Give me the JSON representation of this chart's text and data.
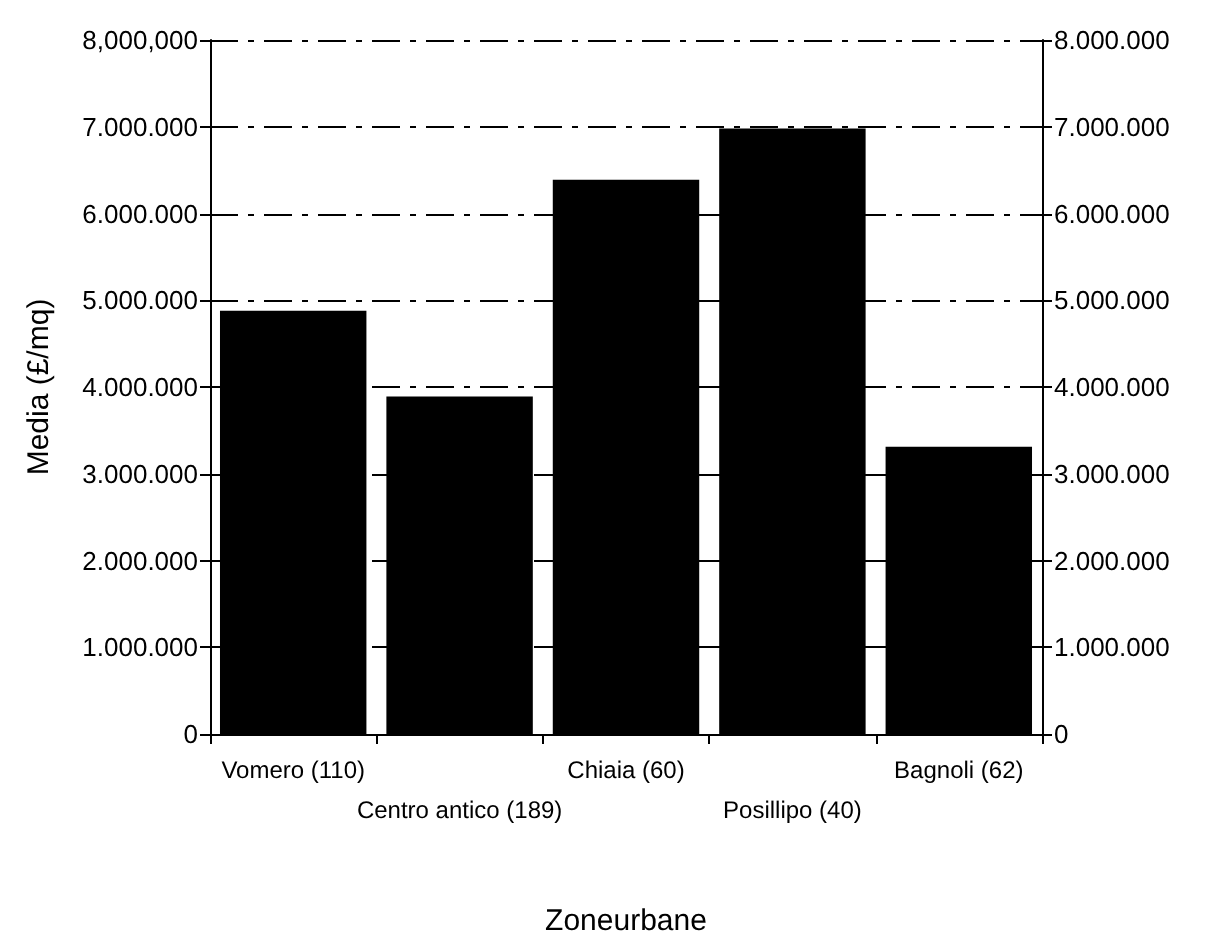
{
  "chart_data": {
    "type": "bar",
    "xlabel": "Zoneurbane",
    "ylabel": "Media (£/mq)",
    "categories": [
      "Vomero (110)",
      "Centro antico (189)",
      "Chiaia (60)",
      "Posillipo (40)",
      "Bagnoli (62)"
    ],
    "values": [
      4880000,
      3890000,
      6390000,
      6980000,
      3310000
    ],
    "color": "#000000",
    "ylim": [
      0,
      8000000
    ],
    "yticks": [
      {
        "value": 0,
        "label": "0"
      },
      {
        "value": 1000000,
        "label": "1.000.000"
      },
      {
        "value": 2000000,
        "label": "2.000.000"
      },
      {
        "value": 3000000,
        "label": "3.000.000"
      },
      {
        "value": 4000000,
        "label": "4.000.000"
      },
      {
        "value": 5000000,
        "label": "5.000.000"
      },
      {
        "value": 6000000,
        "label": "6.000.000"
      },
      {
        "value": 7000000,
        "label": "7.000.000"
      },
      {
        "value": 8000000,
        "label": "8,000,000"
      }
    ],
    "y2lim": [
      0,
      8000000
    ],
    "y2ticks": [
      {
        "value": 0,
        "label": "0"
      },
      {
        "value": 1000000,
        "label": "1.000.000"
      },
      {
        "value": 2000000,
        "label": "2.000.000"
      },
      {
        "value": 3000000,
        "label": "3.000.000"
      },
      {
        "value": 4000000,
        "label": "4.000.000"
      },
      {
        "value": 5000000,
        "label": "5.000.000"
      },
      {
        "value": 6000000,
        "label": "6.000.000"
      },
      {
        "value": 7000000,
        "label": "7.000.000"
      },
      {
        "value": 8000000,
        "label": "8.000.000"
      }
    ],
    "grid": "y"
  }
}
